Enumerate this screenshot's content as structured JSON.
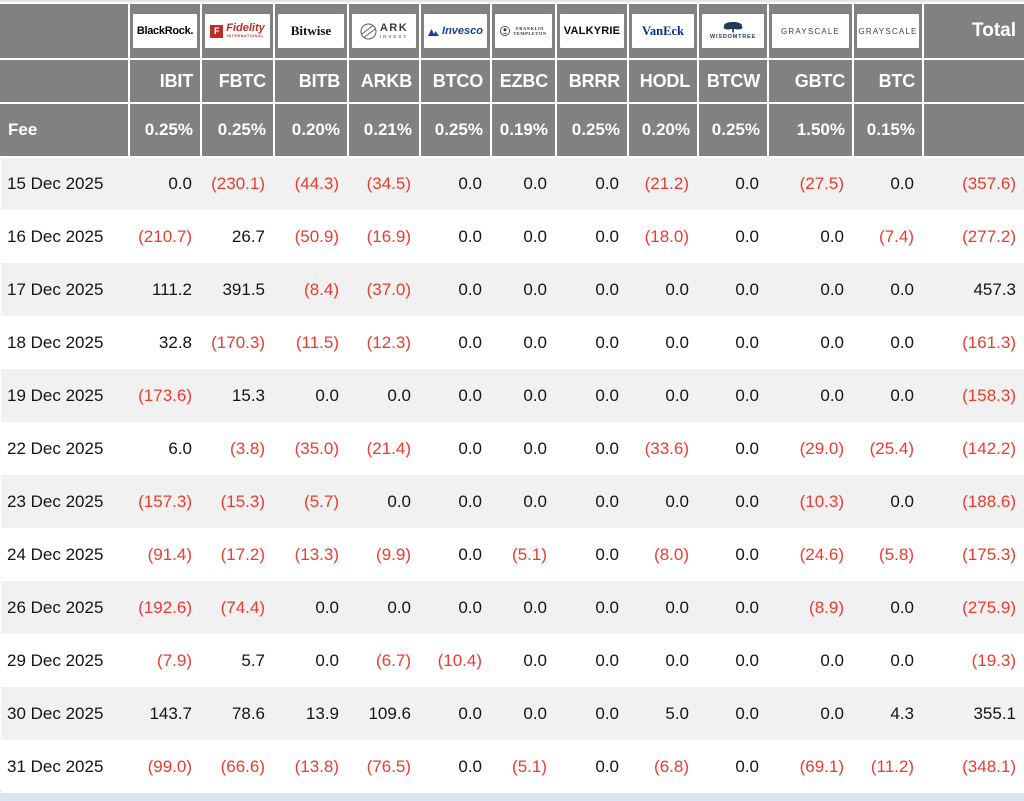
{
  "colors": {
    "header_bg": "#818181",
    "header_text": "#ffffff",
    "negative_value": "#ee3b2e",
    "positive_value": "#141414",
    "row_stripe": "#f1f1f1",
    "page_bottom_strip": "#d9e5f2"
  },
  "table": {
    "fee_label": "Fee",
    "total_label": "Total",
    "providers": [
      {
        "name": "BlackRock",
        "logo_text": "BlackRock.",
        "ticker": "IBIT",
        "fee": "0.25%"
      },
      {
        "name": "Fidelity",
        "logo_text": "Fidelity",
        "logo_initial": "F",
        "logo_sub": "INTERNATIONAL",
        "ticker": "FBTC",
        "fee": "0.25%"
      },
      {
        "name": "Bitwise",
        "logo_text": "Bitwise",
        "ticker": "BITB",
        "fee": "0.20%"
      },
      {
        "name": "ARK Invest",
        "logo_text": "ARK",
        "logo_sub": "INVEST",
        "ticker": "ARKB",
        "fee": "0.21%"
      },
      {
        "name": "Invesco",
        "logo_text": "Invesco",
        "ticker": "BTCO",
        "fee": "0.25%"
      },
      {
        "name": "Franklin Templeton",
        "logo_text": "FRANKLIN",
        "logo_sub": "TEMPLETON",
        "ticker": "EZBC",
        "fee": "0.19%"
      },
      {
        "name": "Valkyrie",
        "logo_text": "VALKYRIE",
        "ticker": "BRRR",
        "fee": "0.25%"
      },
      {
        "name": "VanEck",
        "logo_text": "VanEck",
        "ticker": "HODL",
        "fee": "0.20%"
      },
      {
        "name": "WisdomTree",
        "logo_text": "WISDOMTREE",
        "ticker": "BTCW",
        "fee": "0.25%"
      },
      {
        "name": "Grayscale",
        "logo_text": "GRAYSCALE",
        "ticker": "GBTC",
        "fee": "1.50%"
      },
      {
        "name": "Grayscale",
        "logo_text": "GRAYSCALE",
        "ticker": "BTC",
        "fee": "0.15%"
      }
    ],
    "rows": [
      {
        "date": "15 Dec 2025",
        "values": [
          "0.0",
          "(230.1)",
          "(44.3)",
          "(34.5)",
          "0.0",
          "0.0",
          "0.0",
          "(21.2)",
          "0.0",
          "(27.5)",
          "0.0"
        ],
        "total": "(357.6)"
      },
      {
        "date": "16 Dec 2025",
        "values": [
          "(210.7)",
          "26.7",
          "(50.9)",
          "(16.9)",
          "0.0",
          "0.0",
          "0.0",
          "(18.0)",
          "0.0",
          "0.0",
          "(7.4)"
        ],
        "total": "(277.2)"
      },
      {
        "date": "17 Dec 2025",
        "values": [
          "111.2",
          "391.5",
          "(8.4)",
          "(37.0)",
          "0.0",
          "0.0",
          "0.0",
          "0.0",
          "0.0",
          "0.0",
          "0.0"
        ],
        "total": "457.3"
      },
      {
        "date": "18 Dec 2025",
        "values": [
          "32.8",
          "(170.3)",
          "(11.5)",
          "(12.3)",
          "0.0",
          "0.0",
          "0.0",
          "0.0",
          "0.0",
          "0.0",
          "0.0"
        ],
        "total": "(161.3)"
      },
      {
        "date": "19 Dec 2025",
        "values": [
          "(173.6)",
          "15.3",
          "0.0",
          "0.0",
          "0.0",
          "0.0",
          "0.0",
          "0.0",
          "0.0",
          "0.0",
          "0.0"
        ],
        "total": "(158.3)"
      },
      {
        "date": "22 Dec 2025",
        "values": [
          "6.0",
          "(3.8)",
          "(35.0)",
          "(21.4)",
          "0.0",
          "0.0",
          "0.0",
          "(33.6)",
          "0.0",
          "(29.0)",
          "(25.4)"
        ],
        "total": "(142.2)"
      },
      {
        "date": "23 Dec 2025",
        "values": [
          "(157.3)",
          "(15.3)",
          "(5.7)",
          "0.0",
          "0.0",
          "0.0",
          "0.0",
          "0.0",
          "0.0",
          "(10.3)",
          "0.0"
        ],
        "total": "(188.6)"
      },
      {
        "date": "24 Dec 2025",
        "values": [
          "(91.4)",
          "(17.2)",
          "(13.3)",
          "(9.9)",
          "0.0",
          "(5.1)",
          "0.0",
          "(8.0)",
          "0.0",
          "(24.6)",
          "(5.8)"
        ],
        "total": "(175.3)"
      },
      {
        "date": "26 Dec 2025",
        "values": [
          "(192.6)",
          "(74.4)",
          "0.0",
          "0.0",
          "0.0",
          "0.0",
          "0.0",
          "0.0",
          "0.0",
          "(8.9)",
          "0.0"
        ],
        "total": "(275.9)"
      },
      {
        "date": "29 Dec 2025",
        "values": [
          "(7.9)",
          "5.7",
          "0.0",
          "(6.7)",
          "(10.4)",
          "0.0",
          "0.0",
          "0.0",
          "0.0",
          "0.0",
          "0.0"
        ],
        "total": "(19.3)"
      },
      {
        "date": "30 Dec 2025",
        "values": [
          "143.7",
          "78.6",
          "13.9",
          "109.6",
          "0.0",
          "0.0",
          "0.0",
          "5.0",
          "0.0",
          "0.0",
          "4.3"
        ],
        "total": "355.1"
      },
      {
        "date": "31 Dec 2025",
        "values": [
          "(99.0)",
          "(66.6)",
          "(13.8)",
          "(76.5)",
          "0.0",
          "(5.1)",
          "0.0",
          "(6.8)",
          "0.0",
          "(69.1)",
          "(11.2)"
        ],
        "total": "(348.1)"
      }
    ]
  }
}
